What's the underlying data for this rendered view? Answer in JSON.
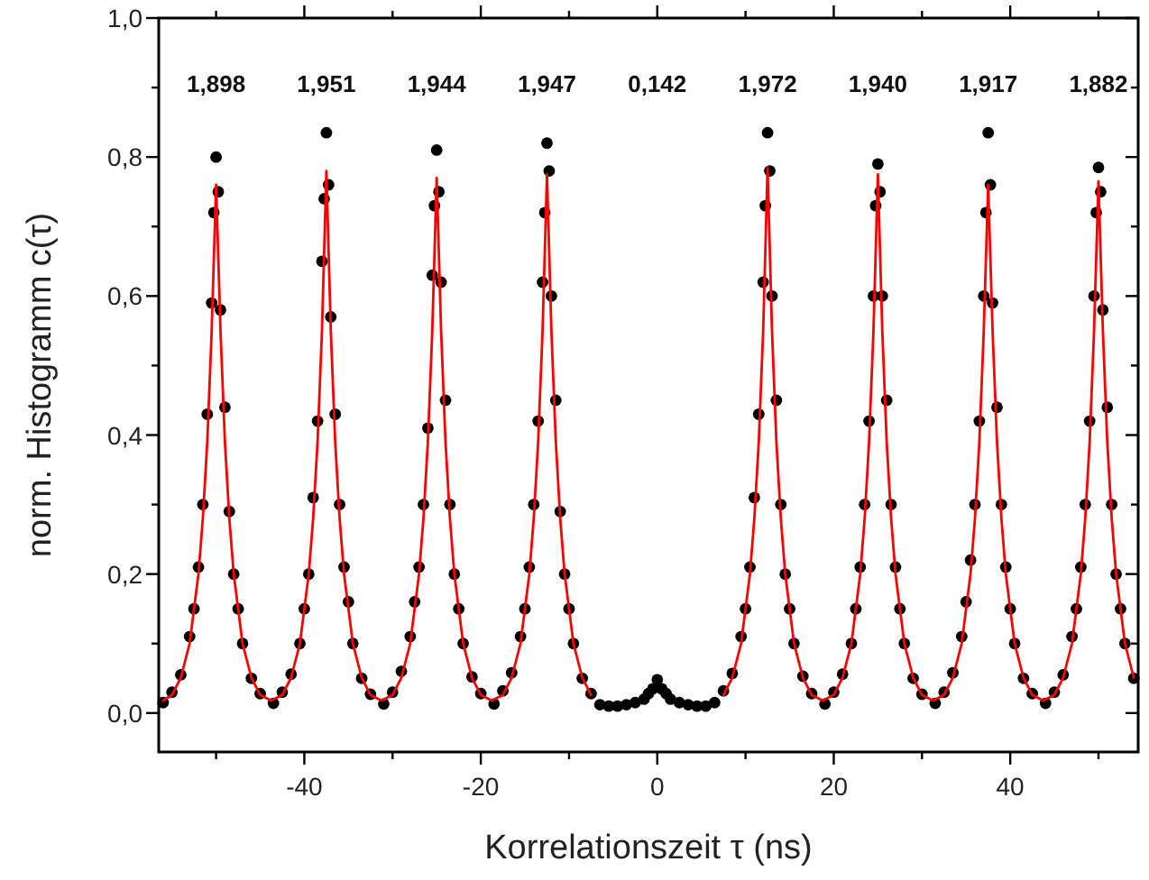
{
  "chart_data": {
    "type": "scatter",
    "xlabel": "Korrelationszeit τ (ns)",
    "ylabel": "norm. Histogramm c(τ)",
    "xlim": [
      -56.5,
      54.5
    ],
    "ylim": [
      -0.056,
      1.0
    ],
    "xticks": [
      {
        "value": -50,
        "label": null
      },
      {
        "value": -40,
        "label": "-40"
      },
      {
        "value": -30,
        "label": null
      },
      {
        "value": -20,
        "label": "-20"
      },
      {
        "value": -10,
        "label": null
      },
      0,
      {
        "value": 10,
        "label": null
      },
      20,
      {
        "value": 30,
        "label": null
      },
      40,
      {
        "value": 50,
        "label": null
      }
    ],
    "yticks": [
      {
        "value": 0,
        "label": "0,0"
      },
      {
        "value": 0.1,
        "label": null
      },
      {
        "value": 0.2,
        "label": "0,2"
      },
      {
        "value": 0.3,
        "label": null
      },
      {
        "value": 0.4,
        "label": "0,4"
      },
      {
        "value": 0.5,
        "label": null
      },
      {
        "value": 0.6,
        "label": "0,6"
      },
      {
        "value": 0.7,
        "label": null
      },
      {
        "value": 0.8,
        "label": "0,8"
      },
      {
        "value": 0.9,
        "label": null
      },
      {
        "value": 1.0,
        "label": "1,0"
      }
    ],
    "grid": false,
    "annotations": [
      "1,898",
      "1,951",
      "1,944",
      "1,947",
      "0,142",
      "1,972",
      "1,940",
      "1,917",
      "1,882"
    ],
    "series": [
      {
        "color": "#000000",
        "marker": "circle",
        "x": [
          -56,
          -55,
          -54,
          -53,
          -52.5,
          -52,
          -51.5,
          -51,
          -50.5,
          -50.25,
          -50,
          -49.75,
          -49.5,
          -49,
          -48.5,
          -48,
          -47.5,
          -47,
          -46,
          -45,
          -43.5,
          -42.5,
          -41.5,
          -40.5,
          -40,
          -39.5,
          -39,
          -38.5,
          -38,
          -37.75,
          -37.5,
          -37.25,
          -37,
          -36.5,
          -36,
          -35.5,
          -35,
          -34.5,
          -33.5,
          -32.5,
          -31,
          -30,
          -29,
          -28,
          -27.5,
          -27,
          -26.5,
          -26,
          -25.5,
          -25.25,
          -25,
          -24.75,
          -24.5,
          -24,
          -23.5,
          -23,
          -22.5,
          -22,
          -21,
          -20,
          -18.5,
          -17.5,
          -16.5,
          -15.5,
          -15,
          -14.5,
          -14,
          -13.5,
          -13,
          -12.75,
          -12.5,
          -12.25,
          -12,
          -11.5,
          -11,
          -10.5,
          -10,
          -9.5,
          -8.5,
          -7.5,
          -6.5,
          -5.5,
          -4.5,
          -3.5,
          -2.5,
          -1.5,
          -1,
          -0.5,
          0,
          0.5,
          1,
          1.5,
          2.5,
          3.5,
          4.5,
          5.5,
          6.5,
          7.5,
          8.5,
          9.5,
          10,
          10.5,
          11,
          11.5,
          12,
          12.25,
          12.5,
          12.75,
          13,
          13.5,
          14,
          14.5,
          15,
          15.5,
          16.5,
          17.5,
          19,
          20,
          21,
          22,
          22.5,
          23,
          23.5,
          24,
          24.5,
          24.75,
          25,
          25.25,
          25.5,
          26,
          26.5,
          27,
          27.5,
          28,
          29,
          30,
          31.5,
          32.5,
          33.5,
          34.5,
          35,
          35.5,
          36,
          36.5,
          37,
          37.25,
          37.5,
          37.75,
          38,
          38.5,
          39,
          39.5,
          40,
          40.5,
          41.5,
          42.5,
          44,
          45,
          46,
          47,
          47.5,
          48,
          48.5,
          49,
          49.5,
          49.75,
          50,
          50.25,
          50.5,
          51,
          51.5,
          52,
          52.5,
          53,
          54
        ],
        "values": [
          0.015,
          0.03,
          0.055,
          0.11,
          0.15,
          0.21,
          0.3,
          0.43,
          0.59,
          0.72,
          0.8,
          0.75,
          0.58,
          0.44,
          0.29,
          0.2,
          0.15,
          0.1,
          0.05,
          0.028,
          0.014,
          0.03,
          0.056,
          0.1,
          0.15,
          0.2,
          0.31,
          0.42,
          0.65,
          0.74,
          0.835,
          0.76,
          0.57,
          0.43,
          0.3,
          0.21,
          0.16,
          0.1,
          0.05,
          0.027,
          0.013,
          0.03,
          0.06,
          0.11,
          0.16,
          0.21,
          0.3,
          0.41,
          0.63,
          0.73,
          0.81,
          0.75,
          0.62,
          0.45,
          0.3,
          0.2,
          0.15,
          0.1,
          0.052,
          0.028,
          0.013,
          0.032,
          0.058,
          0.11,
          0.15,
          0.21,
          0.3,
          0.42,
          0.62,
          0.72,
          0.82,
          0.78,
          0.6,
          0.45,
          0.29,
          0.2,
          0.15,
          0.1,
          0.05,
          0.028,
          0.012,
          0.01,
          0.01,
          0.012,
          0.015,
          0.02,
          0.028,
          0.035,
          0.048,
          0.035,
          0.028,
          0.02,
          0.015,
          0.012,
          0.01,
          0.01,
          0.015,
          0.032,
          0.057,
          0.11,
          0.15,
          0.21,
          0.31,
          0.43,
          0.62,
          0.73,
          0.835,
          0.78,
          0.6,
          0.45,
          0.3,
          0.2,
          0.15,
          0.1,
          0.053,
          0.028,
          0.013,
          0.03,
          0.056,
          0.1,
          0.15,
          0.21,
          0.3,
          0.42,
          0.6,
          0.73,
          0.79,
          0.75,
          0.6,
          0.45,
          0.3,
          0.21,
          0.15,
          0.1,
          0.05,
          0.027,
          0.014,
          0.03,
          0.058,
          0.11,
          0.16,
          0.22,
          0.3,
          0.42,
          0.6,
          0.72,
          0.835,
          0.76,
          0.59,
          0.44,
          0.3,
          0.21,
          0.15,
          0.1,
          0.05,
          0.028,
          0.014,
          0.03,
          0.055,
          0.11,
          0.15,
          0.21,
          0.3,
          0.42,
          0.6,
          0.72,
          0.785,
          0.75,
          0.58,
          0.44,
          0.3,
          0.2,
          0.15,
          0.1,
          0.05
        ]
      },
      {
        "type": "line",
        "color": "#ff0000",
        "line_style": "solid",
        "x": [
          -56,
          -55,
          -54,
          -53,
          -52,
          -51.5,
          -51,
          -50.5,
          -50,
          -49.5,
          -49,
          -48.5,
          -48,
          -47,
          -46,
          -45,
          -43.75,
          -42.5,
          -41.5,
          -40.5,
          -39.5,
          -39,
          -38.5,
          -38,
          -37.5,
          -37,
          -36.5,
          -36,
          -35.5,
          -34.5,
          -33.5,
          -32.5,
          -31.25,
          -30,
          -29,
          -28,
          -27,
          -26.5,
          -26,
          -25.5,
          -25,
          -24.5,
          -24,
          -23.5,
          -23,
          -22,
          -21,
          -20,
          -18.75,
          -17.5,
          -16.5,
          -15.5,
          -14.5,
          -14,
          -13.5,
          -13,
          -12.5,
          -12,
          -11.5,
          -11,
          -10.5,
          -9.5,
          -8.5,
          -7.5,
          0,
          7.5,
          8.5,
          9.5,
          10.5,
          11,
          11.5,
          12,
          12.5,
          13,
          13.5,
          14,
          14.5,
          15.5,
          16.5,
          17.5,
          18.75,
          20,
          21,
          22,
          23,
          23.5,
          24,
          24.5,
          25,
          25.5,
          26,
          26.5,
          27,
          28,
          29,
          30,
          31.25,
          32.5,
          33.5,
          34.5,
          35.5,
          36,
          36.5,
          37,
          37.5,
          38,
          38.5,
          39,
          39.5,
          40.5,
          41.5,
          42.5,
          43.75,
          45,
          46,
          47,
          48,
          48.5,
          49,
          49.5,
          50,
          50.5,
          51,
          51.5,
          52,
          53,
          54
        ],
        "values": [
          0.018,
          0.026,
          0.051,
          0.1,
          0.2,
          0.28,
          0.39,
          0.55,
          0.76,
          0.55,
          0.39,
          0.28,
          0.2,
          0.1,
          0.051,
          0.026,
          0.018,
          0.026,
          0.051,
          0.1,
          0.2,
          0.28,
          0.39,
          0.55,
          0.78,
          0.55,
          0.39,
          0.28,
          0.2,
          0.1,
          0.051,
          0.026,
          0.018,
          0.026,
          0.051,
          0.1,
          0.2,
          0.28,
          0.39,
          0.55,
          0.77,
          0.55,
          0.39,
          0.28,
          0.2,
          0.1,
          0.051,
          0.026,
          0.018,
          0.026,
          0.051,
          0.1,
          0.2,
          0.28,
          0.39,
          0.55,
          0.775,
          0.55,
          0.39,
          0.28,
          0.2,
          0.1,
          0.051,
          0.026,
          null,
          0.026,
          0.051,
          0.1,
          0.2,
          0.28,
          0.39,
          0.55,
          0.785,
          0.55,
          0.39,
          0.28,
          0.2,
          0.1,
          0.051,
          0.026,
          0.018,
          0.026,
          0.051,
          0.1,
          0.2,
          0.28,
          0.39,
          0.55,
          0.775,
          0.55,
          0.39,
          0.28,
          0.2,
          0.1,
          0.051,
          0.026,
          0.018,
          0.026,
          0.051,
          0.1,
          0.2,
          0.28,
          0.39,
          0.55,
          0.76,
          0.55,
          0.39,
          0.28,
          0.2,
          0.1,
          0.051,
          0.026,
          0.018,
          0.026,
          0.051,
          0.1,
          0.2,
          0.28,
          0.39,
          0.55,
          0.765,
          0.55,
          0.39,
          0.28,
          0.2,
          0.1,
          0.051
        ]
      }
    ]
  }
}
